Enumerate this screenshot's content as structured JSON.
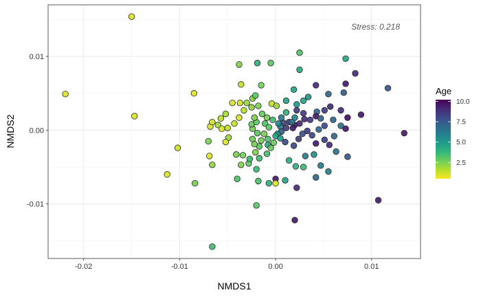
{
  "chart_data": {
    "type": "scatter",
    "title": "",
    "xlabel": "NMDS1",
    "ylabel": "NMDS2",
    "xlim": [
      -0.0237,
      0.0151
    ],
    "ylim": [
      -0.0174,
      0.017
    ],
    "grid": true,
    "x_ticks": [
      {
        "value": -0.02,
        "label": "-0.02"
      },
      {
        "value": -0.01,
        "label": "-0.01"
      },
      {
        "value": 0.0,
        "label": "0.00"
      },
      {
        "value": 0.01,
        "label": "0.01"
      }
    ],
    "y_ticks": [
      {
        "value": -0.01,
        "label": "-0.01"
      },
      {
        "value": 0.0,
        "label": "0.00"
      },
      {
        "value": 0.01,
        "label": "0.01"
      }
    ],
    "annotation": "Stress: 0.218",
    "legend": {
      "title": "Age",
      "type": "colorbar",
      "placement": "right",
      "range": [
        0.5,
        10.2
      ],
      "ticks": [
        {
          "value": 2.5,
          "label": "2.5"
        },
        {
          "value": 5.0,
          "label": "5.0"
        },
        {
          "value": 7.5,
          "label": "7.5"
        },
        {
          "value": 10.0,
          "label": "10.0"
        }
      ]
    },
    "colormap": [
      "#fde725",
      "#b5de2b",
      "#6ece58",
      "#35b779",
      "#1f9e89",
      "#26828e",
      "#31688e",
      "#3e4989",
      "#482878",
      "#440154"
    ],
    "points": [
      {
        "x": -0.015,
        "y": 0.0154,
        "age": 1.0
      },
      {
        "x": -0.0219,
        "y": 0.0049,
        "age": 1.0
      },
      {
        "x": -0.0147,
        "y": 0.0019,
        "age": 1.0
      },
      {
        "x": -0.0085,
        "y": 0.005,
        "age": 1.0
      },
      {
        "x": -0.0102,
        "y": -0.0024,
        "age": 1.2
      },
      {
        "x": -0.0113,
        "y": -0.006,
        "age": 1.0
      },
      {
        "x": -0.0084,
        "y": -0.0072,
        "age": 2.5
      },
      {
        "x": -0.0066,
        "y": -0.0158,
        "age": 3.5
      },
      {
        "x": -0.0068,
        "y": 0.0005,
        "age": 1.0
      },
      {
        "x": -0.0066,
        "y": 0.0011,
        "age": 1.2
      },
      {
        "x": -0.006,
        "y": 0.0007,
        "age": 2.0
      },
      {
        "x": -0.0057,
        "y": 0.0016,
        "age": 1.5
      },
      {
        "x": -0.0052,
        "y": 0.0022,
        "age": 1.8
      },
      {
        "x": -0.0056,
        "y": 0.0002,
        "age": 1.0
      },
      {
        "x": -0.005,
        "y": 0.0003,
        "age": 1.5
      },
      {
        "x": -0.0045,
        "y": 0.0037,
        "age": 1.0
      },
      {
        "x": -0.0037,
        "y": 0.0037,
        "age": 1.2
      },
      {
        "x": -0.0036,
        "y": 0.0062,
        "age": 1.3
      },
      {
        "x": -0.0033,
        "y": 0.0027,
        "age": 1.5
      },
      {
        "x": -0.0038,
        "y": 0.0017,
        "age": 1.0
      },
      {
        "x": -0.003,
        "y": 0.0037,
        "age": 2.0
      },
      {
        "x": -0.0024,
        "y": 0.0043,
        "age": 2.3
      },
      {
        "x": -0.0021,
        "y": 0.0047,
        "age": 3.0
      },
      {
        "x": -0.0043,
        "y": 0.0009,
        "age": 1.3
      },
      {
        "x": -0.0049,
        "y": -0.001,
        "age": 2.0
      },
      {
        "x": -0.0052,
        "y": -0.0016,
        "age": 1.0
      },
      {
        "x": -0.007,
        "y": -0.0015,
        "age": 2.5
      },
      {
        "x": -0.0069,
        "y": -0.0035,
        "age": 1.0
      },
      {
        "x": -0.0066,
        "y": -0.0047,
        "age": 2.2
      },
      {
        "x": -0.0041,
        "y": -0.0033,
        "age": 2.5
      },
      {
        "x": -0.0034,
        "y": -0.0034,
        "age": 2.6
      },
      {
        "x": -0.0036,
        "y": -0.0047,
        "age": 2.4
      },
      {
        "x": -0.004,
        "y": -0.0066,
        "age": 3.3
      },
      {
        "x": -0.0028,
        "y": -0.0045,
        "age": 2.9
      },
      {
        "x": -0.002,
        "y": -0.0053,
        "age": 3.6
      },
      {
        "x": -0.002,
        "y": -0.0102,
        "age": 3.0
      },
      {
        "x": -0.0018,
        "y": -0.0069,
        "age": 3.3
      },
      {
        "x": -0.0007,
        "y": -0.0072,
        "age": 4.0
      },
      {
        "x": 0.0,
        "y": -0.0066,
        "age": 9.5
      },
      {
        "x": 0.0,
        "y": -0.0072,
        "age": 1.0
      },
      {
        "x": 0.001,
        "y": -0.0068,
        "age": 4.5
      },
      {
        "x": 0.002,
        "y": -0.0122,
        "age": 9.5
      },
      {
        "x": 0.0022,
        "y": -0.0078,
        "age": 9.0
      },
      {
        "x": 0.0107,
        "y": -0.0095,
        "age": 9.5
      },
      {
        "x": -0.0038,
        "y": 0.0089,
        "age": 2.3
      },
      {
        "x": -0.0019,
        "y": 0.0091,
        "age": 4.0
      },
      {
        "x": -0.0005,
        "y": 0.0091,
        "age": 3.0
      },
      {
        "x": -0.0015,
        "y": 0.0061,
        "age": 2.6
      },
      {
        "x": 0.0025,
        "y": 0.0105,
        "age": 3.2
      },
      {
        "x": 0.0025,
        "y": 0.0082,
        "age": 4.3
      },
      {
        "x": 0.0073,
        "y": 0.0097,
        "age": 4.5
      },
      {
        "x": 0.0083,
        "y": 0.0077,
        "age": 9.0
      },
      {
        "x": 0.0073,
        "y": 0.0063,
        "age": 9.5
      },
      {
        "x": 0.0042,
        "y": 0.0061,
        "age": 9.0
      },
      {
        "x": 0.0117,
        "y": 0.0057,
        "age": 7.5
      },
      {
        "x": 0.0055,
        "y": 0.0049,
        "age": 7.0
      },
      {
        "x": 0.0071,
        "y": 0.0051,
        "age": 7.3
      },
      {
        "x": 0.0019,
        "y": 0.0055,
        "age": 4.6
      },
      {
        "x": 0.0034,
        "y": 0.0045,
        "age": 5.2
      },
      {
        "x": 0.0029,
        "y": 0.004,
        "age": 4.5
      },
      {
        "x": 0.0011,
        "y": 0.004,
        "age": 4.6
      },
      {
        "x": -0.0004,
        "y": 0.0036,
        "age": 1.3
      },
      {
        "x": 0.0001,
        "y": 0.0033,
        "age": 2.0
      },
      {
        "x": 0.0022,
        "y": 0.0035,
        "age": 5.0
      },
      {
        "x": 0.0022,
        "y": 0.0027,
        "age": 8.5
      },
      {
        "x": 0.0043,
        "y": 0.0025,
        "age": 6.8
      },
      {
        "x": 0.0051,
        "y": 0.0027,
        "age": 8.5
      },
      {
        "x": 0.0057,
        "y": 0.0032,
        "age": 9.0
      },
      {
        "x": 0.0068,
        "y": 0.0027,
        "age": 9.0
      },
      {
        "x": 0.0089,
        "y": 0.0021,
        "age": 9.5
      },
      {
        "x": 0.0075,
        "y": 0.0017,
        "age": 9.8
      },
      {
        "x": 0.0042,
        "y": 0.0019,
        "age": 9.5
      },
      {
        "x": 0.0029,
        "y": 0.0023,
        "age": 8.5
      },
      {
        "x": 0.0011,
        "y": 0.0024,
        "age": 4.0
      },
      {
        "x": 0.002,
        "y": 0.0017,
        "age": 5.8
      },
      {
        "x": 0.003,
        "y": 0.0015,
        "age": 9.0
      },
      {
        "x": 0.0036,
        "y": 0.0014,
        "age": 8.5
      },
      {
        "x": 0.0047,
        "y": 0.0016,
        "age": 7.2
      },
      {
        "x": 0.006,
        "y": 0.0014,
        "age": 7.0
      },
      {
        "x": 0.0051,
        "y": 0.0006,
        "age": 8.0
      },
      {
        "x": 0.0068,
        "y": 0.0006,
        "age": 6.5
      },
      {
        "x": 0.0073,
        "y": 0.0002,
        "age": 9.5
      },
      {
        "x": 0.0134,
        "y": -0.0004,
        "age": 9.5
      },
      {
        "x": 0.0045,
        "y": 0.0001,
        "age": 7.0
      },
      {
        "x": 0.0038,
        "y": -0.0007,
        "age": 8.0
      },
      {
        "x": 0.0042,
        "y": -0.0018,
        "age": 9.5
      },
      {
        "x": 0.0051,
        "y": -0.0013,
        "age": 8.5
      },
      {
        "x": 0.0061,
        "y": -0.0008,
        "age": 7.0
      },
      {
        "x": 0.0056,
        "y": -0.002,
        "age": 9.0
      },
      {
        "x": 0.0075,
        "y": -0.0036,
        "age": 7.5
      },
      {
        "x": 0.0063,
        "y": -0.0029,
        "age": 6.5
      },
      {
        "x": 0.004,
        "y": -0.0033,
        "age": 5.3
      },
      {
        "x": 0.0047,
        "y": -0.0048,
        "age": 6.0
      },
      {
        "x": 0.0055,
        "y": -0.0056,
        "age": 6.0
      },
      {
        "x": 0.0042,
        "y": -0.0064,
        "age": 7.0
      },
      {
        "x": 0.0031,
        "y": -0.0035,
        "age": 6.0
      },
      {
        "x": 0.0029,
        "y": -0.005,
        "age": 3.5
      },
      {
        "x": 0.0021,
        "y": -0.0049,
        "age": 4.0
      },
      {
        "x": 0.0014,
        "y": -0.0041,
        "age": 4.2
      },
      {
        "x": 0.0019,
        "y": -0.0021,
        "age": 8.0
      },
      {
        "x": 0.0024,
        "y": -0.0012,
        "age": 8.5
      },
      {
        "x": 0.0028,
        "y": -0.0005,
        "age": 7.8
      },
      {
        "x": 0.0033,
        "y": -0.0001,
        "age": 8.5
      },
      {
        "x": 0.002,
        "y": 0.0007,
        "age": 9.5
      },
      {
        "x": 0.0014,
        "y": 0.0011,
        "age": 8.5
      },
      {
        "x": 0.0018,
        "y": 0.0003,
        "age": 9.5
      },
      {
        "x": 0.0011,
        "y": 0.0003,
        "age": 8.6
      },
      {
        "x": 0.0008,
        "y": 0.001,
        "age": 8.0
      },
      {
        "x": 0.0005,
        "y": 0.0005,
        "age": 6.0
      },
      {
        "x": 0.0006,
        "y": -0.0002,
        "age": 7.2
      },
      {
        "x": 0.0002,
        "y": -0.0005,
        "age": 5.5
      },
      {
        "x": 0.0,
        "y": -0.0008,
        "age": 4.5
      },
      {
        "x": 0.0005,
        "y": -0.0011,
        "age": 5.0
      },
      {
        "x": 0.001,
        "y": -0.0016,
        "age": 8.0
      },
      {
        "x": -0.0003,
        "y": 0.0014,
        "age": 3.5
      },
      {
        "x": -0.0009,
        "y": 0.0017,
        "age": 2.5
      },
      {
        "x": -0.0011,
        "y": 0.0009,
        "age": 3.2
      },
      {
        "x": -0.0007,
        "y": 0.0004,
        "age": 3.0
      },
      {
        "x": -0.0012,
        "y": -0.0005,
        "age": 2.5
      },
      {
        "x": -0.0015,
        "y": -0.0014,
        "age": 2.6
      },
      {
        "x": -0.0008,
        "y": -0.002,
        "age": 4.2
      },
      {
        "x": -0.0005,
        "y": -0.0024,
        "age": 2.8
      },
      {
        "x": -0.0009,
        "y": -0.0032,
        "age": 3.4
      },
      {
        "x": -0.0017,
        "y": -0.0022,
        "age": 3.0
      },
      {
        "x": -0.0021,
        "y": -0.003,
        "age": 2.4
      },
      {
        "x": -0.0017,
        "y": -0.0038,
        "age": 3.5
      },
      {
        "x": -0.0027,
        "y": -0.0039,
        "age": 3.6
      },
      {
        "x": -0.0024,
        "y": -0.0012,
        "age": 2.7
      },
      {
        "x": -0.0022,
        "y": -0.0019,
        "age": 2.6
      },
      {
        "x": -0.0024,
        "y": 0.0002,
        "age": 2.5
      },
      {
        "x": -0.0025,
        "y": 0.0008,
        "age": 2.8
      },
      {
        "x": -0.002,
        "y": 0.0011,
        "age": 3.0
      },
      {
        "x": -0.0022,
        "y": 0.0017,
        "age": 2.4
      },
      {
        "x": -0.0025,
        "y": 0.0031,
        "age": 2.2
      },
      {
        "x": -0.0018,
        "y": 0.0033,
        "age": 2.5
      },
      {
        "x": -0.0014,
        "y": 0.0022,
        "age": 2.8
      },
      {
        "x": -0.0019,
        "y": -0.0004,
        "age": 3.0
      },
      {
        "x": -0.0008,
        "y": -0.0012,
        "age": 3.2
      },
      {
        "x": -0.0002,
        "y": -0.0017,
        "age": 2.7
      },
      {
        "x": 0.0003,
        "y": 0.0009,
        "age": 5.8
      },
      {
        "x": 0.0006,
        "y": 0.0017,
        "age": 6.2
      },
      {
        "x": 0.0017,
        "y": 0.0011,
        "age": 6.5
      },
      {
        "x": 0.0025,
        "y": 0.0009,
        "age": 9.0
      }
    ]
  }
}
